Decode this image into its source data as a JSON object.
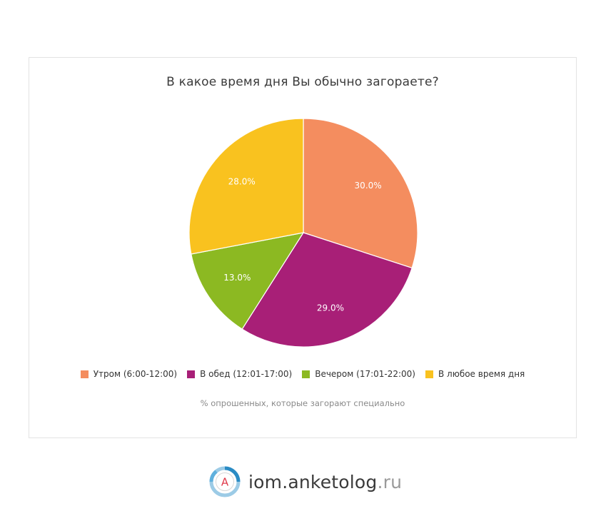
{
  "chart_data": {
    "type": "pie",
    "title": "В какое время дня Вы обычно загораете?",
    "subtitle": "% опрошенных, которые загорают специально",
    "start_angle_deg": 0,
    "direction": "clockwise",
    "slices": [
      {
        "label": "Утром (6:00-12:00)",
        "value": 30.0,
        "display": "30.0%",
        "color": "#f48d5f"
      },
      {
        "label": "В обед (12:01-17:00)",
        "value": 29.0,
        "display": "29.0%",
        "color": "#a81f77"
      },
      {
        "label": "Вечером (17:01-22:00)",
        "value": 13.0,
        "display": "13.0%",
        "color": "#8cb922"
      },
      {
        "label": "В любое время дня",
        "value": 28.0,
        "display": "28.0%",
        "color": "#f9c21f"
      }
    ],
    "legend_placement": "bottom"
  },
  "brand": {
    "logo_letter": "A",
    "name": "iom.anketolog",
    "tld": ".ru"
  }
}
